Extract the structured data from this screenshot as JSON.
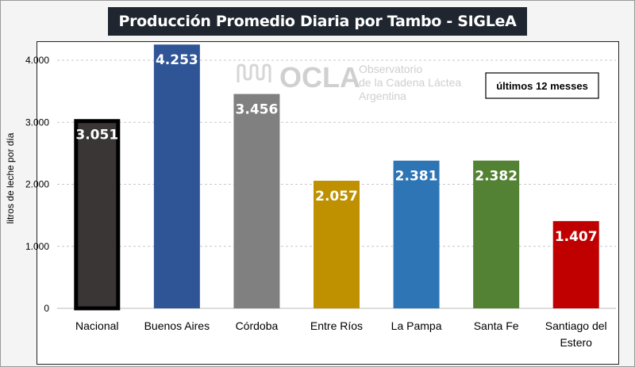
{
  "chart_data": {
    "type": "bar",
    "title": "Producción Promedio Diaria por Tambo - SIGLeA",
    "ylabel": "litros de leche por día",
    "xlabel": "",
    "annotation": "últimos 12 messes",
    "categories": [
      "Nacional",
      "Buenos Aires",
      "Córdoba",
      "Entre Ríos",
      "La Pampa",
      "Santa Fe",
      "Santiago del Estero"
    ],
    "values": [
      3051,
      4253,
      3456,
      2057,
      2381,
      2382,
      1407
    ],
    "value_labels": [
      "3.051",
      "4.253",
      "3.456",
      "2.057",
      "2.381",
      "2.382",
      "1.407"
    ],
    "colors": [
      "#3a3636",
      "#2f5597",
      "#808080",
      "#bf9000",
      "#2e75b6",
      "#548235",
      "#c00000"
    ],
    "yticks": [
      0,
      1000,
      2000,
      3000,
      4000
    ],
    "ytick_labels": [
      "0",
      "1.000",
      "2.000",
      "3.000",
      "4.000"
    ],
    "ylim": [
      0,
      4300
    ],
    "grid": true,
    "legend": "none"
  },
  "watermark": {
    "brand": "OCLA",
    "line1": "Observatorio",
    "line2": "de la Cadena Láctea",
    "line3": "Argentina"
  }
}
